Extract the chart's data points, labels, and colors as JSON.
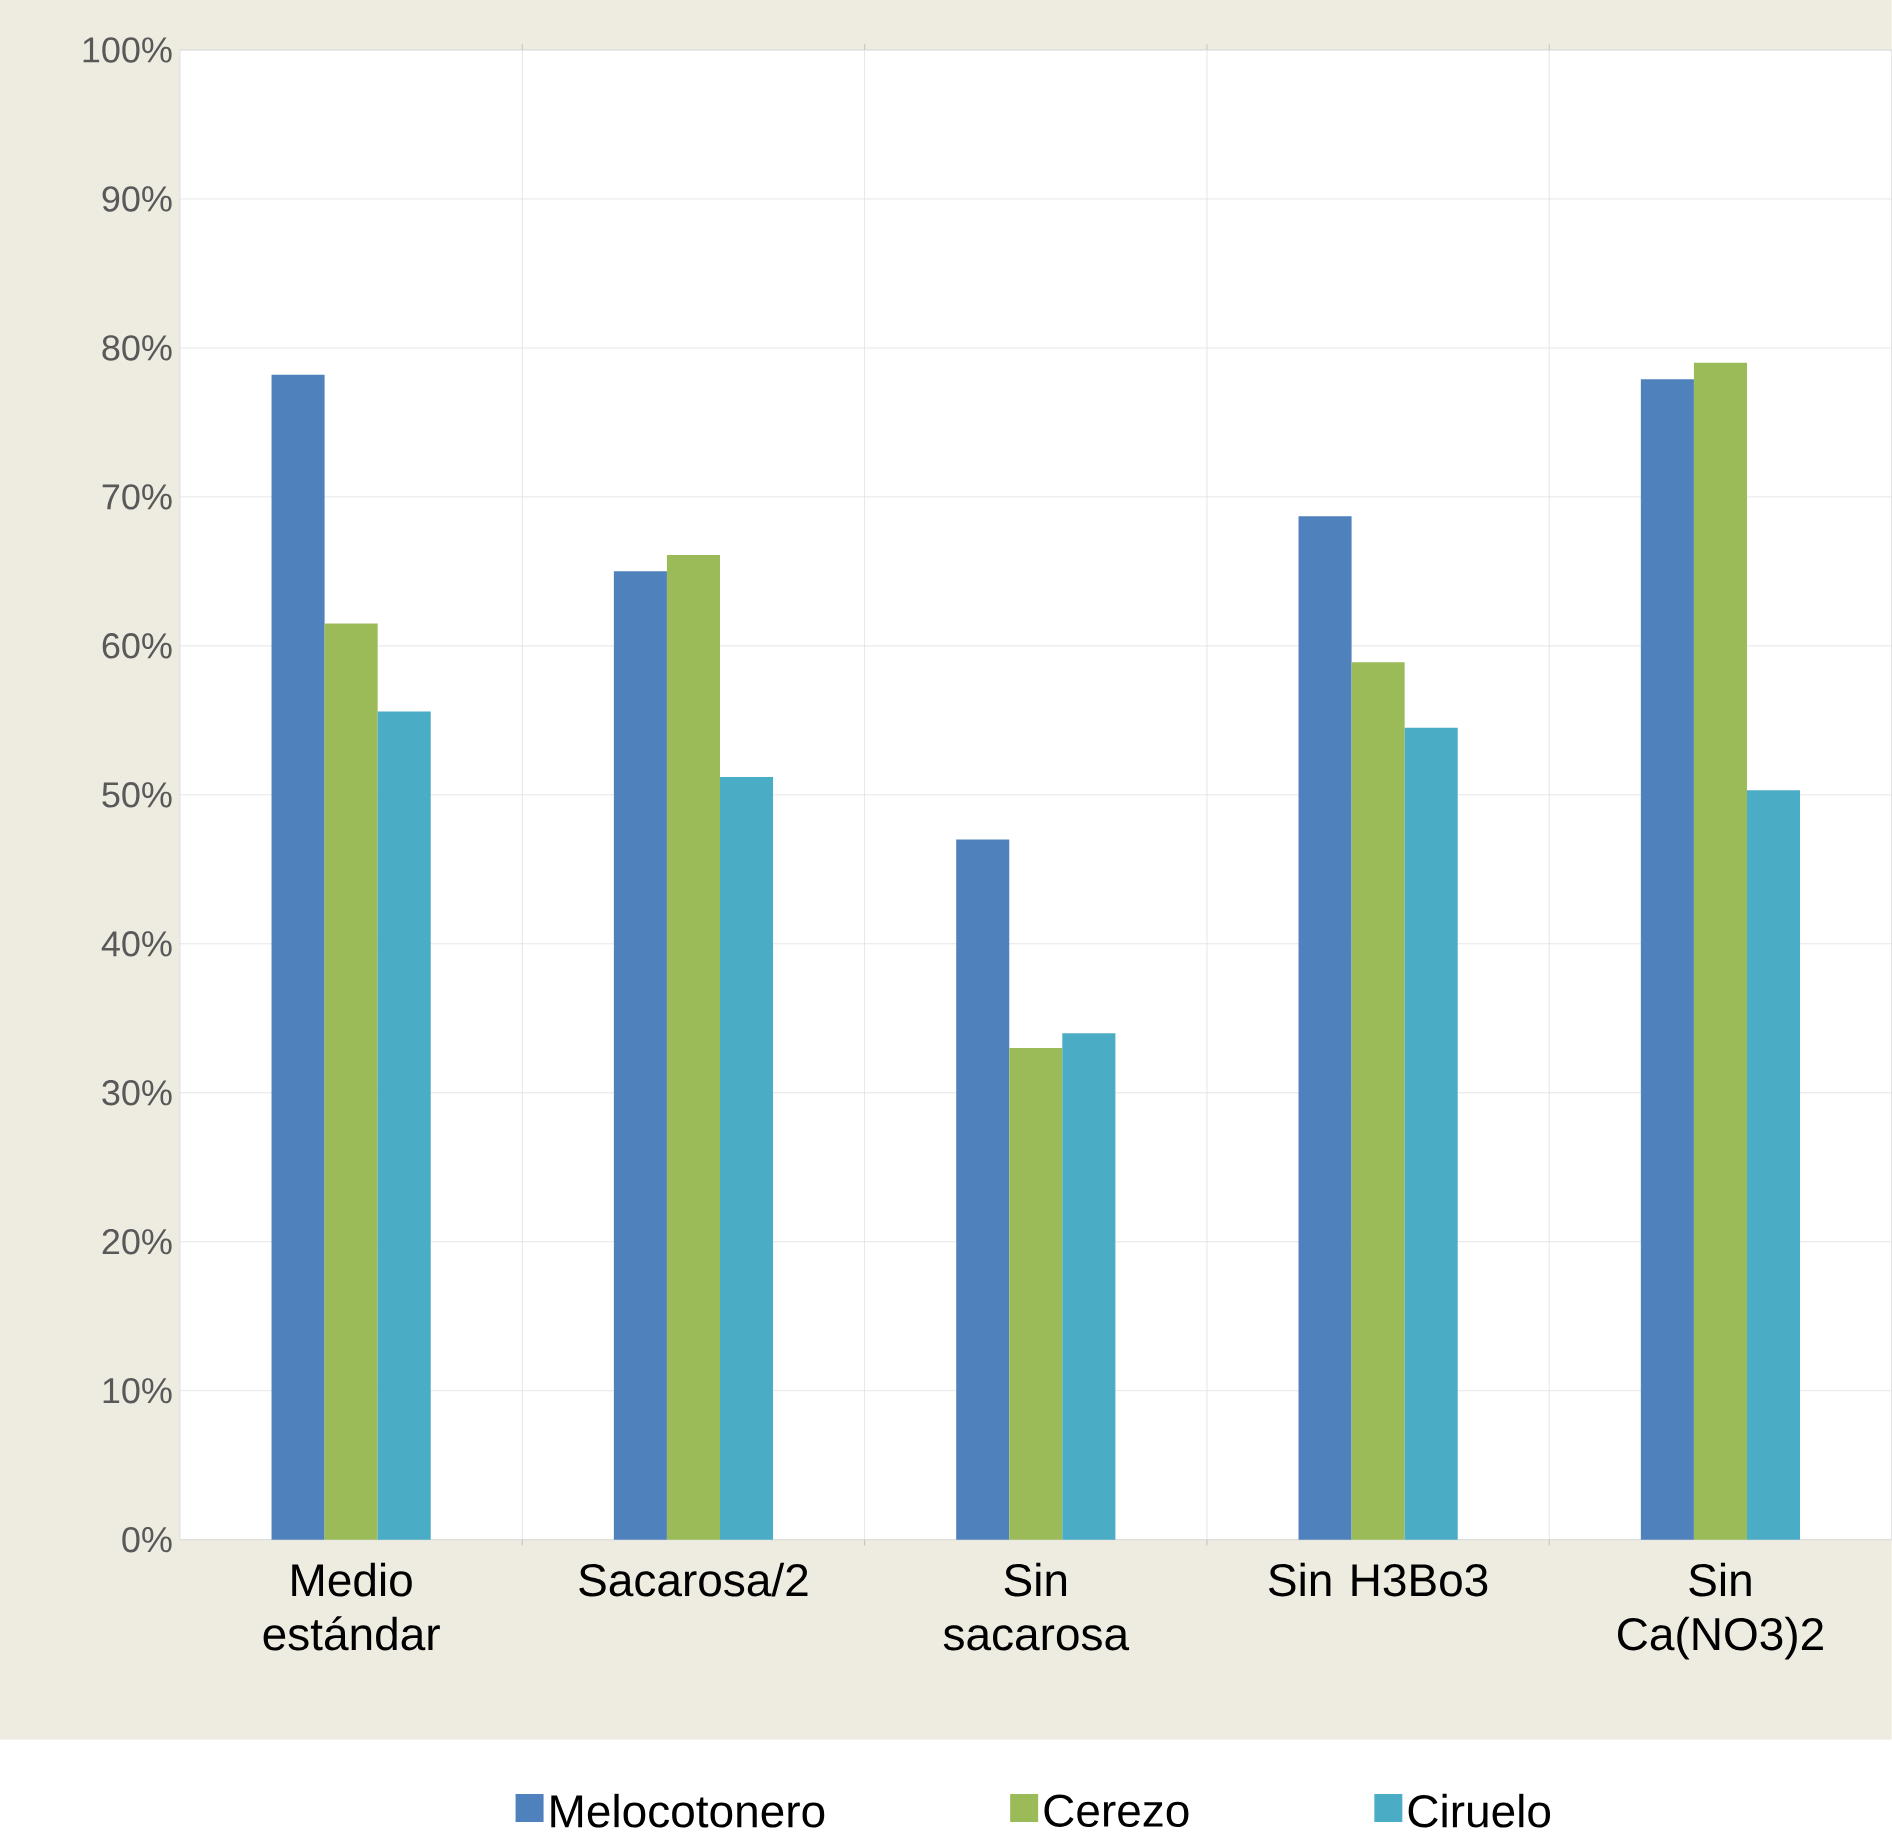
{
  "chart_data": {
    "type": "bar",
    "categories": [
      "Medio estándar",
      "Sacarosa/2",
      "Sin sacarosa",
      "Sin H3Bo3",
      "Sin Ca(NO3)2"
    ],
    "series": [
      {
        "name": "Melocotonero",
        "color": "#4f81bd",
        "values": [
          78.2,
          65.0,
          47.0,
          68.7,
          77.9
        ]
      },
      {
        "name": "Cerezo",
        "color": "#9bbb59",
        "values": [
          61.5,
          66.1,
          33.0,
          58.9,
          79.0
        ]
      },
      {
        "name": "Ciruelo",
        "color": "#4bacc6",
        "values": [
          55.6,
          51.2,
          34.0,
          54.5,
          50.3
        ]
      }
    ],
    "ylim": [
      0,
      100
    ],
    "yticks": [
      {
        "value": 0,
        "label": "0%"
      },
      {
        "value": 10,
        "label": "10%"
      },
      {
        "value": 20,
        "label": "20%"
      },
      {
        "value": 30,
        "label": "30%"
      },
      {
        "value": 40,
        "label": "40%"
      },
      {
        "value": 50,
        "label": "50%"
      },
      {
        "value": 60,
        "label": "60%"
      },
      {
        "value": 70,
        "label": "70%"
      },
      {
        "value": 80,
        "label": "80%"
      },
      {
        "value": 90,
        "label": "90%"
      },
      {
        "value": 100,
        "label": "100%"
      }
    ],
    "grid": true,
    "legend": "bottom"
  }
}
